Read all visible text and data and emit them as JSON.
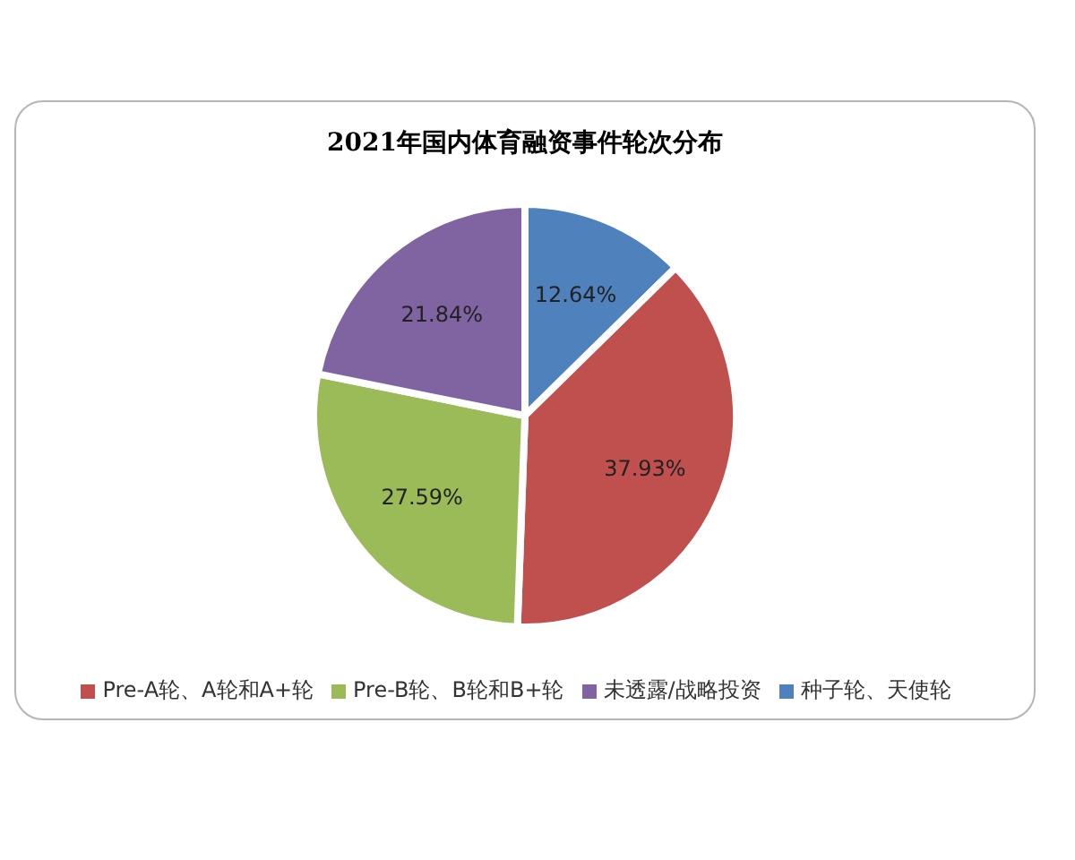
{
  "chart_data": {
    "type": "pie",
    "title": "2021年国内体育融资事件轮次分布",
    "categories": [
      "种子轮、天使轮",
      "Pre-A轮、A轮和A+轮",
      "Pre-B轮、B轮和B+轮",
      "未透露/战略投资"
    ],
    "values": [
      12.64,
      37.93,
      27.59,
      21.84
    ],
    "colors": [
      "#4f81bd",
      "#c0504d",
      "#9bbb59",
      "#8064a2"
    ],
    "value_labels": [
      "12.64%",
      "37.93%",
      "27.59%",
      "21.84%"
    ],
    "legend": "bottom"
  }
}
